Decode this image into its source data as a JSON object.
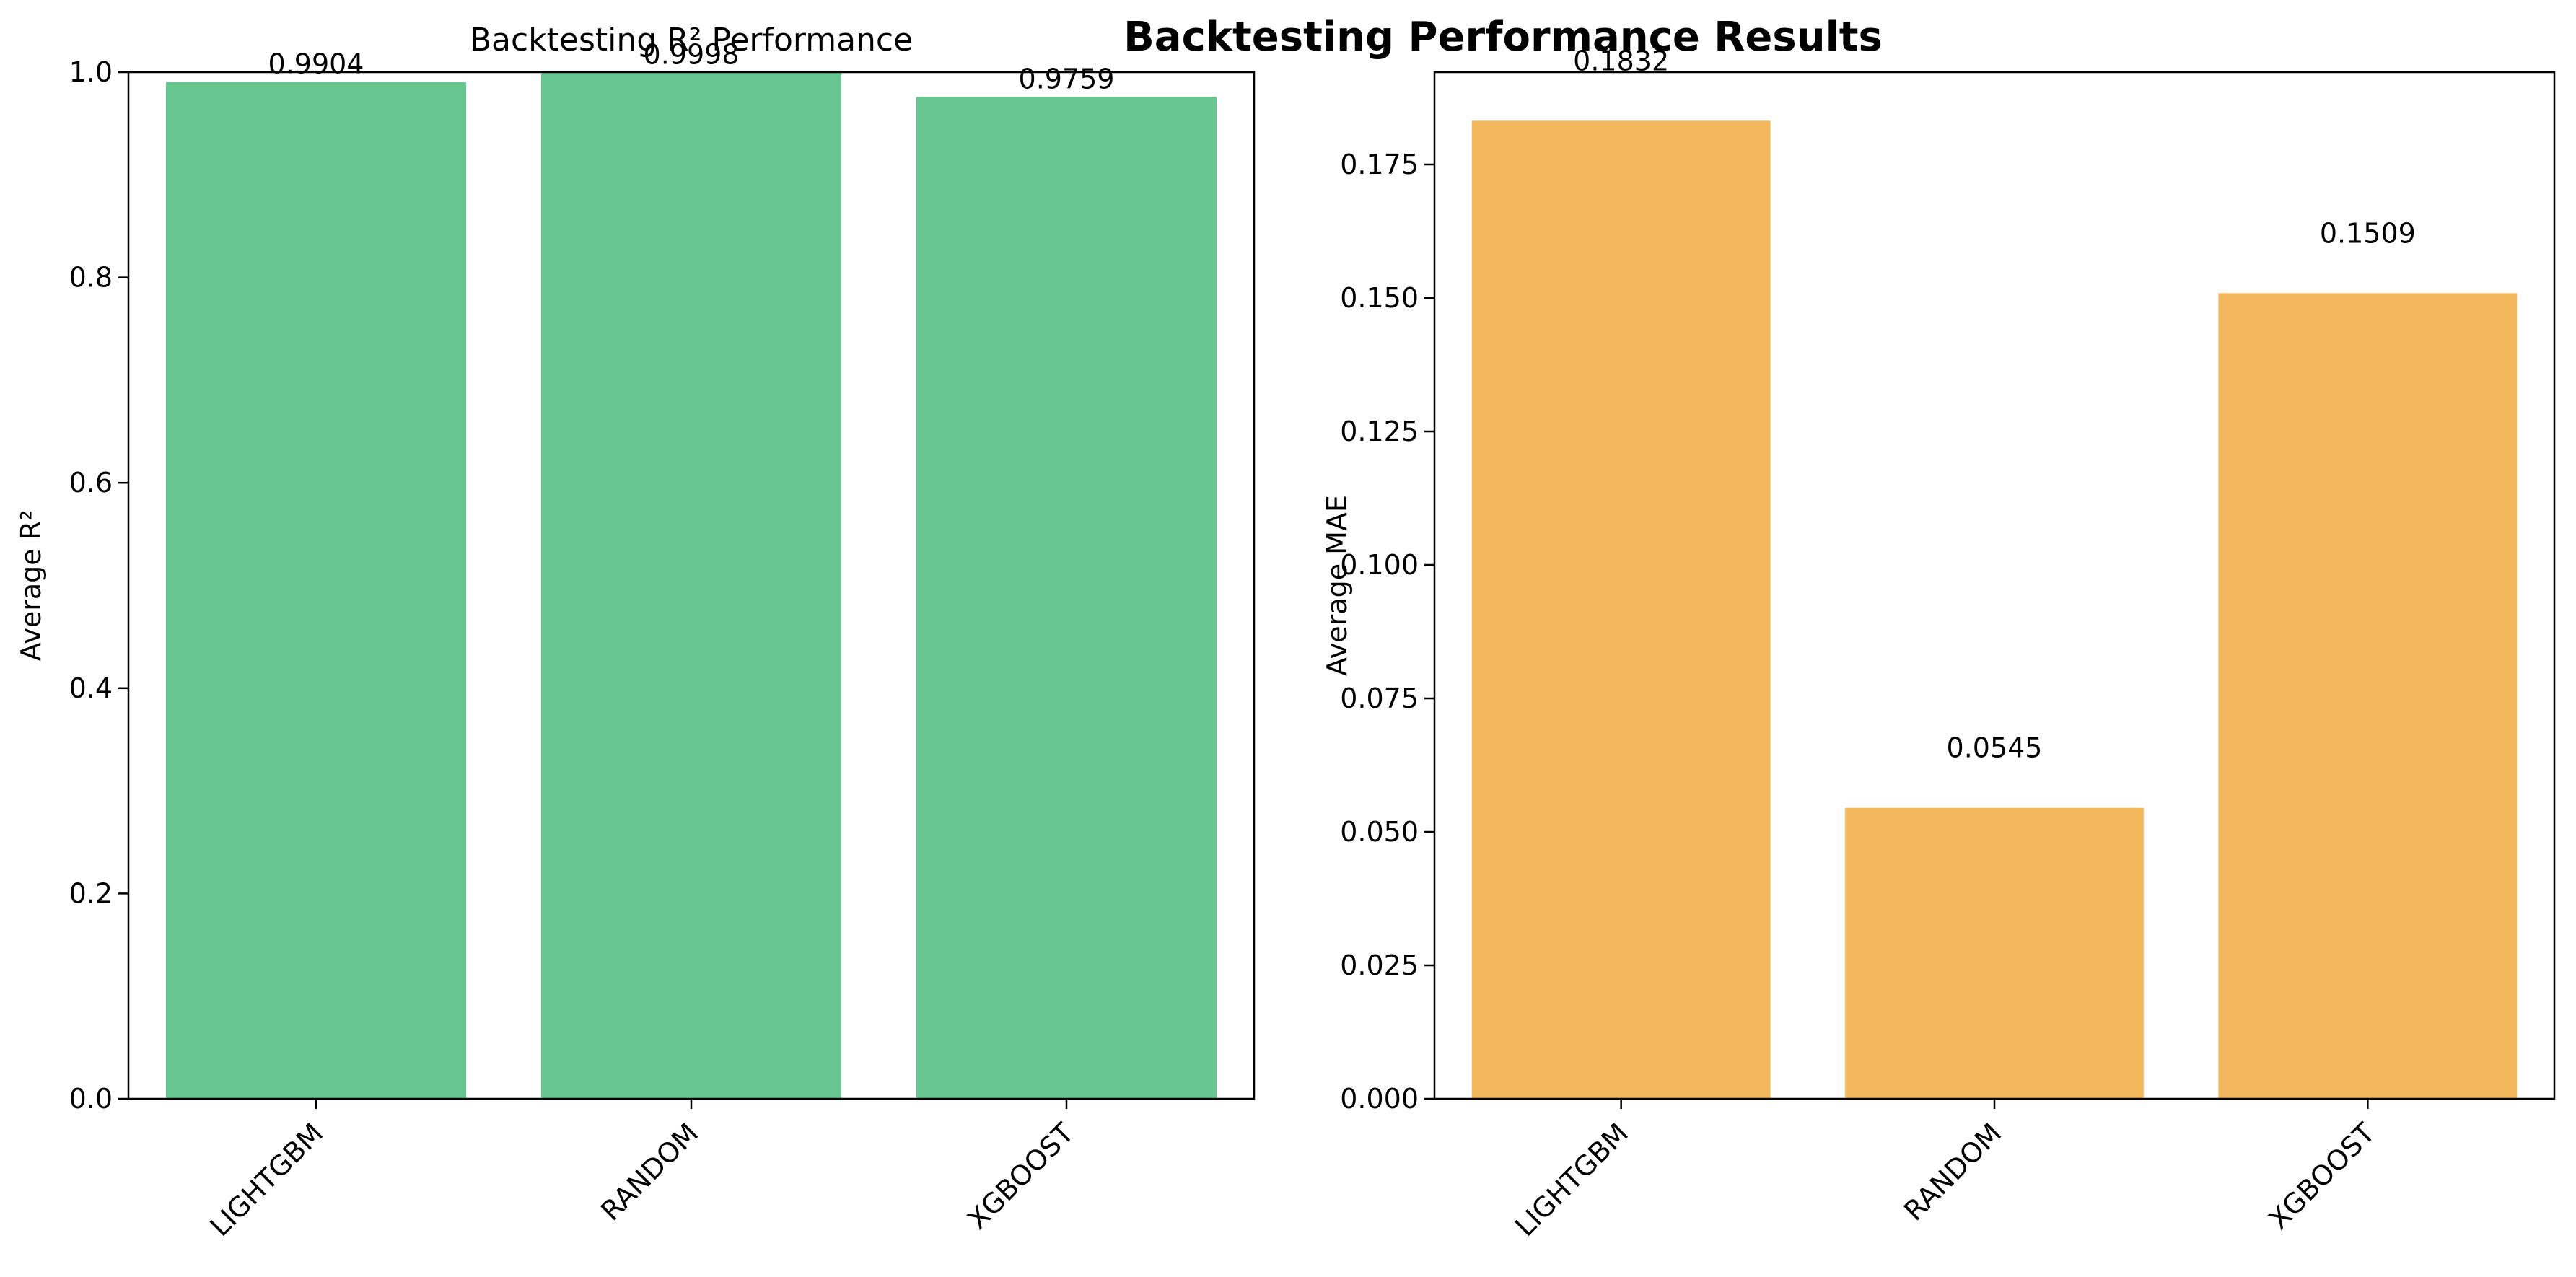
{
  "figure_title": "Backtesting Performance Results",
  "colors": {
    "r2_bar": "#68c690",
    "mae_bar": "#f4b85c",
    "axis": "#000000"
  },
  "chart_data": [
    {
      "type": "bar",
      "title": "Backtesting R² Performance",
      "xlabel": "",
      "ylabel": "Average R²",
      "categories": [
        "LIGHTGBM",
        "RANDOM",
        "XGBOOST"
      ],
      "values": [
        0.9904,
        0.9998,
        0.9759
      ],
      "value_labels": [
        "0.9904",
        "0.9998",
        "0.9759"
      ],
      "ylim": [
        0,
        1.0
      ],
      "yticks": [
        "0.0",
        "0.2",
        "0.4",
        "0.6",
        "0.8",
        "1.0"
      ],
      "grid": false
    },
    {
      "type": "bar",
      "title": "",
      "xlabel": "",
      "ylabel": "Average MAE",
      "categories": [
        "LIGHTGBM",
        "RANDOM",
        "XGBOOST"
      ],
      "values": [
        0.1832,
        0.0545,
        0.1509
      ],
      "value_labels": [
        "0.1832",
        "0.0545",
        "0.1509"
      ],
      "ylim": [
        0,
        0.1923
      ],
      "yticks": [
        "0.000",
        "0.025",
        "0.050",
        "0.075",
        "0.100",
        "0.125",
        "0.150",
        "0.175"
      ],
      "grid": false
    }
  ]
}
